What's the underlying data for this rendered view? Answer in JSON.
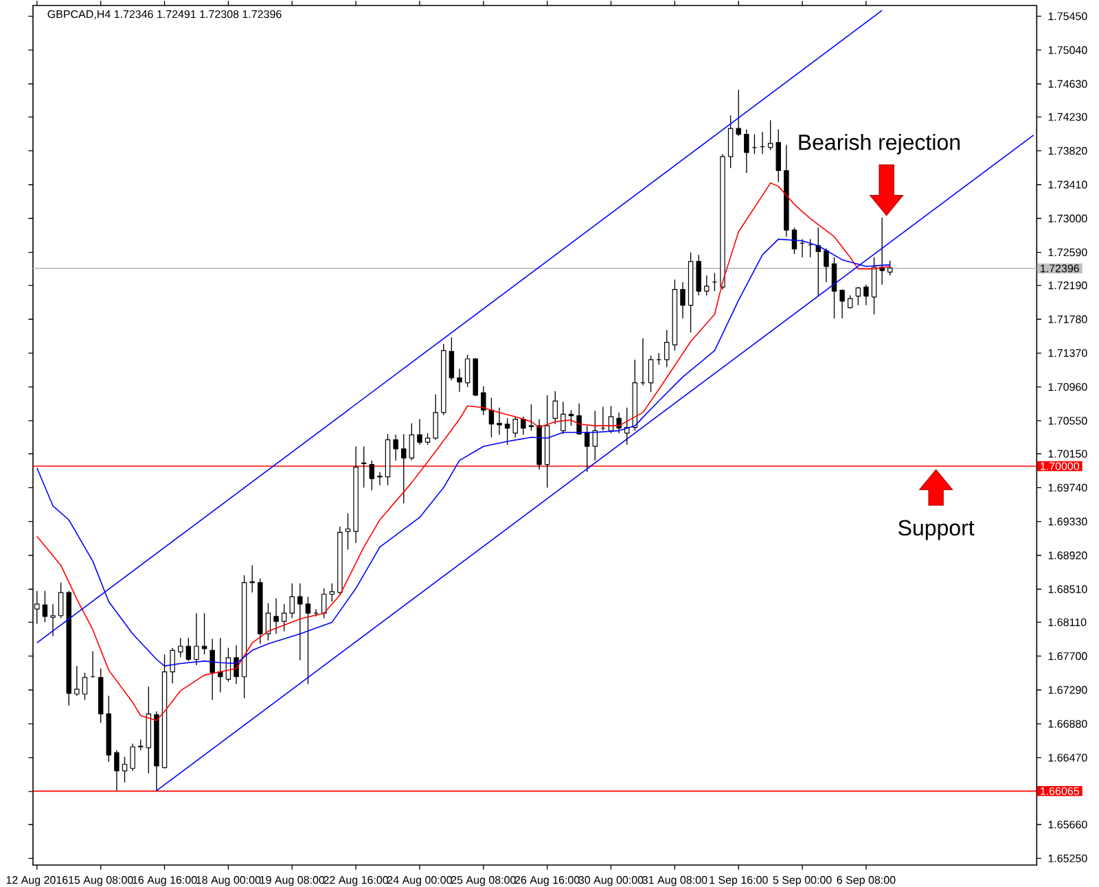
{
  "chart_data": {
    "type": "candlestick",
    "title": "GBPCAD,H4  1.72346 1.72491 1.72308 1.72396",
    "categories": [
      "12 Aug 2016",
      null,
      null,
      null,
      null,
      null,
      null,
      null,
      "15 Aug 08:00",
      null,
      null,
      null,
      null,
      null,
      null,
      null,
      "16 Aug 16:00",
      null,
      null,
      null,
      null,
      null,
      null,
      null,
      "18 Aug 00:00",
      null,
      null,
      null,
      null,
      null,
      null,
      null,
      "19 Aug 08:00",
      null,
      null,
      null,
      null,
      null,
      null,
      null,
      "22 Aug 16:00",
      null,
      null,
      null,
      null,
      null,
      null,
      null,
      "24 Aug 00:00",
      null,
      null,
      null,
      null,
      null,
      null,
      null,
      "25 Aug 08:00",
      null,
      null,
      null,
      null,
      null,
      null,
      null,
      "26 Aug 16:00",
      null,
      null,
      null,
      null,
      null,
      null,
      null,
      "30 Aug 00:00",
      null,
      null,
      null,
      null,
      null,
      null,
      null,
      "31 Aug 08:00",
      null,
      null,
      null,
      null,
      null,
      null,
      null,
      "1 Sep 16:00",
      null,
      null,
      null,
      null,
      null,
      null,
      null,
      "5 Sep 00:00",
      null,
      null,
      null,
      null,
      null,
      null,
      null,
      "6 Sep 08:00",
      null,
      null,
      null,
      null,
      null,
      null,
      null,
      null,
      null,
      null,
      null,
      null,
      null,
      null,
      null,
      null,
      null,
      null,
      null,
      null,
      null
    ],
    "ohlc": [
      [
        1.6827,
        1.6849,
        1.6809,
        1.6833
      ],
      [
        1.6832,
        1.6849,
        1.6811,
        1.6818
      ],
      [
        1.6817,
        1.6833,
        1.6794,
        1.6819
      ],
      [
        1.6819,
        1.6859,
        1.6816,
        1.6847
      ],
      [
        1.6847,
        1.6849,
        1.671,
        1.6725
      ],
      [
        1.6724,
        1.6758,
        1.6722,
        1.673
      ],
      [
        1.6724,
        1.675,
        1.6717,
        1.6744
      ],
      [
        1.6745,
        1.6776,
        1.6744,
        1.6745
      ],
      [
        1.6744,
        1.6755,
        1.6689,
        1.67
      ],
      [
        1.67,
        1.6722,
        1.6642,
        1.665
      ],
      [
        1.6653,
        1.6656,
        1.6607,
        1.6631
      ],
      [
        1.6631,
        1.6648,
        1.6617,
        1.6639
      ],
      [
        1.6634,
        1.6664,
        1.6631,
        1.666
      ],
      [
        1.666,
        1.6669,
        1.6656,
        1.6661
      ],
      [
        1.6659,
        1.6733,
        1.6628,
        1.67
      ],
      [
        1.6699,
        1.6703,
        1.6607,
        1.6637
      ],
      [
        1.6635,
        1.6772,
        1.6634,
        1.6751
      ],
      [
        1.6751,
        1.678,
        1.6737,
        1.6777
      ],
      [
        1.6775,
        1.6792,
        1.6769,
        1.6782
      ],
      [
        1.6782,
        1.6792,
        1.6764,
        1.6766
      ],
      [
        1.6766,
        1.6822,
        1.6759,
        1.6782
      ],
      [
        1.6782,
        1.6822,
        1.6772,
        1.6779
      ],
      [
        1.6777,
        1.6791,
        1.6717,
        1.675
      ],
      [
        1.6751,
        1.6792,
        1.6726,
        1.6745
      ],
      [
        1.6742,
        1.678,
        1.6739,
        1.6768
      ],
      [
        1.6768,
        1.6783,
        1.6736,
        1.6745
      ],
      [
        1.6745,
        1.6868,
        1.6719,
        1.6859
      ],
      [
        1.686,
        1.688,
        1.6847,
        1.6859
      ],
      [
        1.6859,
        1.6864,
        1.6785,
        1.6797
      ],
      [
        1.6797,
        1.6834,
        1.6789,
        1.6822
      ],
      [
        1.6818,
        1.684,
        1.6797,
        1.6812
      ],
      [
        1.6812,
        1.6833,
        1.68,
        1.6822
      ],
      [
        1.6822,
        1.6858,
        1.6816,
        1.6842
      ],
      [
        1.6842,
        1.6858,
        1.6765,
        1.6833
      ],
      [
        1.6833,
        1.6842,
        1.6736,
        1.6822
      ],
      [
        1.6822,
        1.6827,
        1.6818,
        1.6822
      ],
      [
        1.6822,
        1.6852,
        1.6816,
        1.6845
      ],
      [
        1.6845,
        1.6858,
        1.6836,
        1.6848
      ],
      [
        1.6847,
        1.6927,
        1.6845,
        1.692
      ],
      [
        1.6921,
        1.6943,
        1.6899,
        1.6924
      ],
      [
        1.6921,
        1.7024,
        1.6907,
        1.6999
      ],
      [
        1.7003,
        1.7024,
        1.6974,
        1.7004
      ],
      [
        1.7002,
        1.7007,
        1.6971,
        1.6985
      ],
      [
        1.6987,
        1.6993,
        1.6977,
        1.6988
      ],
      [
        1.6987,
        1.7039,
        1.6977,
        1.7032
      ],
      [
        1.7032,
        1.7038,
        1.7007,
        1.7021
      ],
      [
        1.7021,
        1.7039,
        1.6955,
        1.701
      ],
      [
        1.701,
        1.7052,
        1.7007,
        1.7038
      ],
      [
        1.7038,
        1.7057,
        1.7026,
        1.7029
      ],
      [
        1.7029,
        1.704,
        1.7026,
        1.7034
      ],
      [
        1.7034,
        1.7087,
        1.7032,
        1.7065
      ],
      [
        1.7065,
        1.7148,
        1.7062,
        1.714
      ],
      [
        1.7139,
        1.7156,
        1.7104,
        1.7107
      ],
      [
        1.7107,
        1.7118,
        1.709,
        1.7102
      ],
      [
        1.7101,
        1.7135,
        1.7096,
        1.713
      ],
      [
        1.713,
        1.7131,
        1.7085,
        1.7086
      ],
      [
        1.7089,
        1.7097,
        1.7062,
        1.7068
      ],
      [
        1.7068,
        1.7083,
        1.7035,
        1.7051
      ],
      [
        1.7052,
        1.7071,
        1.7038,
        1.705
      ],
      [
        1.7051,
        1.7058,
        1.7026,
        1.7046
      ],
      [
        1.704,
        1.706,
        1.7035,
        1.7057
      ],
      [
        1.7057,
        1.706,
        1.7038,
        1.7046
      ],
      [
        1.7049,
        1.7075,
        1.7043,
        1.7048
      ],
      [
        1.7049,
        1.7057,
        1.6996,
        1.7002
      ],
      [
        1.7002,
        1.7086,
        1.6974,
        1.7049
      ],
      [
        1.7058,
        1.7091,
        1.7051,
        1.7079
      ],
      [
        1.7043,
        1.7078,
        1.7039,
        1.7063
      ],
      [
        1.7063,
        1.7068,
        1.7049,
        1.7061
      ],
      [
        1.7061,
        1.7076,
        1.7038,
        1.7039
      ],
      [
        1.7041,
        1.7049,
        1.6993,
        1.7024
      ],
      [
        1.7024,
        1.7067,
        1.7007,
        1.7043
      ],
      [
        1.7046,
        1.7072,
        1.7043,
        1.7046
      ],
      [
        1.7043,
        1.7073,
        1.704,
        1.706
      ],
      [
        1.7058,
        1.7065,
        1.704,
        1.7046
      ],
      [
        1.704,
        1.7071,
        1.7026,
        1.7047
      ],
      [
        1.7047,
        1.7129,
        1.7043,
        1.7101
      ],
      [
        1.7101,
        1.7155,
        1.7098,
        1.7101
      ],
      [
        1.7101,
        1.7134,
        1.709,
        1.7129
      ],
      [
        1.7129,
        1.7137,
        1.7123,
        1.7129
      ],
      [
        1.7129,
        1.7165,
        1.712,
        1.715
      ],
      [
        1.7147,
        1.7226,
        1.714,
        1.7214
      ],
      [
        1.7214,
        1.7223,
        1.7179,
        1.7195
      ],
      [
        1.7195,
        1.7259,
        1.7162,
        1.7248
      ],
      [
        1.7248,
        1.7256,
        1.7207,
        1.7212
      ],
      [
        1.7212,
        1.7231,
        1.7207,
        1.7218
      ],
      [
        1.7223,
        1.7234,
        1.7212,
        1.7223
      ],
      [
        1.7217,
        1.7378,
        1.7214,
        1.7375
      ],
      [
        1.7375,
        1.7425,
        1.7361,
        1.7409
      ],
      [
        1.7409,
        1.7456,
        1.74,
        1.7402
      ],
      [
        1.7402,
        1.7408,
        1.7355,
        1.738
      ],
      [
        1.7386,
        1.7402,
        1.7378,
        1.7386
      ],
      [
        1.7387,
        1.7405,
        1.7378,
        1.7387
      ],
      [
        1.7386,
        1.7419,
        1.7383,
        1.7391
      ],
      [
        1.7392,
        1.7408,
        1.7344,
        1.7358
      ],
      [
        1.7358,
        1.7389,
        1.7278,
        1.7286
      ],
      [
        1.7286,
        1.7289,
        1.7257,
        1.7263
      ],
      [
        1.727,
        1.7275,
        1.7253,
        1.727
      ],
      [
        1.7268,
        1.7275,
        1.7253,
        1.7268
      ],
      [
        1.7267,
        1.7289,
        1.7206,
        1.726
      ],
      [
        1.7261,
        1.7264,
        1.7223,
        1.7242
      ],
      [
        1.7245,
        1.7253,
        1.7179,
        1.7212
      ],
      [
        1.7213,
        1.7214,
        1.7179,
        1.72
      ],
      [
        1.7192,
        1.7207,
        1.7191,
        1.7203
      ],
      [
        1.7206,
        1.7217,
        1.7195,
        1.7216
      ],
      [
        1.7217,
        1.722,
        1.7195,
        1.7206
      ],
      [
        1.7205,
        1.7253,
        1.7184,
        1.7241
      ],
      [
        1.7241,
        1.7301,
        1.722,
        1.7237
      ],
      [
        1.7235,
        1.7249,
        1.7231,
        1.724
      ],
      null,
      null,
      null,
      null,
      null,
      null,
      null,
      null,
      null,
      null,
      null,
      null,
      null,
      null,
      null,
      null,
      null,
      null
    ],
    "series": [
      {
        "type": "line",
        "color": "#ff0000",
        "values": [
          1.6915,
          null,
          null,
          1.688,
          null,
          1.6839,
          null,
          1.6802,
          null,
          1.6753,
          null,
          null,
          1.6714,
          1.6698,
          null,
          1.6692,
          1.6703,
          null,
          1.6728,
          null,
          null,
          1.6747,
          null,
          1.6751,
          null,
          1.6755,
          null,
          1.6786,
          null,
          1.68,
          null,
          null,
          null,
          1.6815,
          null,
          null,
          1.6822,
          null,
          1.6844,
          null,
          null,
          1.6902,
          null,
          1.6935,
          null,
          null,
          null,
          1.698,
          null,
          null,
          1.7018,
          null,
          null,
          1.7057,
          1.7073,
          null,
          1.7071,
          null,
          1.7065,
          null,
          1.706,
          null,
          1.7054,
          1.7047,
          null,
          1.7054,
          null,
          1.7056,
          1.7051,
          null,
          1.7049,
          null,
          null,
          1.7049,
          null,
          null,
          1.7065,
          null,
          1.7093,
          null,
          null,
          null,
          1.7151,
          null,
          null,
          1.7184,
          1.7223,
          null,
          1.7284,
          null,
          null,
          1.7328,
          1.7343,
          1.7339,
          null,
          1.7317,
          null,
          1.73,
          null,
          null,
          1.7278,
          null,
          1.7253,
          1.7239,
          null,
          1.7239,
          null,
          1.7242,
          null,
          null,
          null,
          null,
          null,
          null,
          null,
          null,
          null,
          null,
          null,
          null,
          null,
          null,
          null,
          null,
          null,
          null
        ]
      },
      {
        "type": "line",
        "color": "#0000ff",
        "values": [
          1.6998,
          null,
          1.6952,
          null,
          1.6935,
          null,
          null,
          1.6885,
          null,
          1.6836,
          null,
          null,
          1.6797,
          null,
          null,
          1.6766,
          1.6758,
          null,
          1.6761,
          null,
          null,
          1.6764,
          null,
          1.6762,
          null,
          1.6761,
          null,
          1.6777,
          null,
          1.6785,
          null,
          null,
          null,
          1.6797,
          null,
          null,
          null,
          1.6811,
          null,
          null,
          1.6852,
          null,
          null,
          1.6902,
          null,
          null,
          null,
          null,
          1.6938,
          null,
          null,
          1.6974,
          null,
          1.7007,
          null,
          null,
          1.7024,
          null,
          null,
          1.703,
          null,
          null,
          1.7035,
          null,
          1.7034,
          null,
          1.7041,
          null,
          1.7041,
          null,
          1.7041,
          null,
          null,
          1.7043,
          null,
          1.7049,
          null,
          null,
          1.7079,
          null,
          null,
          1.7108,
          null,
          null,
          null,
          1.714,
          null,
          null,
          1.7201,
          null,
          null,
          1.7256,
          null,
          1.7275,
          null,
          null,
          1.7273,
          null,
          1.7267,
          null,
          null,
          1.725,
          null,
          null,
          1.7242,
          null,
          null,
          1.7244,
          null,
          null,
          null,
          null,
          null,
          null,
          null,
          null,
          null,
          null,
          null,
          null,
          null,
          null,
          null,
          null,
          null,
          null
        ]
      },
      {
        "type": "line",
        "color": "#0000ff",
        "values": [
          1.6786,
          null,
          null,
          null,
          null,
          null,
          null,
          null,
          null,
          null,
          null,
          null,
          null,
          null,
          null,
          null,
          null,
          null,
          null,
          null,
          null,
          null,
          null,
          null,
          null,
          null,
          null,
          null,
          null,
          null,
          null,
          null,
          null,
          null,
          null,
          null,
          null,
          null,
          null,
          null,
          null,
          null,
          null,
          null,
          null,
          null,
          null,
          null,
          null,
          null,
          null,
          null,
          null,
          null,
          null,
          null,
          null,
          null,
          null,
          null,
          null,
          null,
          null,
          null,
          null,
          null,
          null,
          null,
          null,
          null,
          null,
          null,
          null,
          null,
          null,
          null,
          null,
          null,
          null,
          null,
          null,
          null,
          null,
          null,
          null,
          null,
          null,
          null,
          null,
          null,
          null,
          null,
          null,
          null,
          null,
          null,
          null,
          null,
          null,
          null,
          null,
          null,
          null,
          null,
          null,
          null,
          1.7552,
          null,
          null,
          null,
          null,
          null,
          null,
          null,
          null,
          null,
          null,
          null,
          null,
          null,
          null,
          null,
          null,
          null,
          null,
          null
        ]
      },
      {
        "type": "line",
        "color": "#0000ff",
        "values": [
          null,
          null,
          null,
          null,
          null,
          null,
          null,
          null,
          null,
          null,
          null,
          null,
          null,
          null,
          null,
          1.6607,
          null,
          null,
          null,
          null,
          null,
          null,
          null,
          null,
          null,
          null,
          null,
          null,
          null,
          null,
          null,
          null,
          null,
          null,
          null,
          null,
          null,
          null,
          null,
          null,
          null,
          null,
          null,
          null,
          null,
          null,
          null,
          null,
          null,
          null,
          null,
          null,
          null,
          null,
          null,
          null,
          null,
          null,
          null,
          null,
          null,
          null,
          null,
          null,
          null,
          null,
          null,
          null,
          null,
          null,
          null,
          null,
          null,
          null,
          null,
          null,
          null,
          null,
          null,
          null,
          null,
          null,
          null,
          null,
          null,
          null,
          null,
          null,
          null,
          null,
          null,
          null,
          null,
          null,
          null,
          null,
          null,
          null,
          null,
          null,
          null,
          null,
          null,
          null,
          null,
          null,
          null,
          null,
          null,
          null,
          null,
          null,
          null,
          null,
          null,
          null,
          null,
          null,
          null,
          null,
          null,
          null,
          null,
          null,
          null,
          1.7401
        ]
      }
    ],
    "ylim": [
      1.6517,
      1.7558
    ],
    "yticks": [
      {
        "value": 1.7545,
        "label": "1.75450"
      },
      {
        "value": 1.7504,
        "label": "1.75040"
      },
      {
        "value": 1.7463,
        "label": "1.74630"
      },
      {
        "value": 1.7423,
        "label": "1.74230"
      },
      {
        "value": 1.7382,
        "label": "1.73820"
      },
      {
        "value": 1.7341,
        "label": "1.73410"
      },
      {
        "value": 1.73,
        "label": "1.73000"
      },
      {
        "value": 1.7259,
        "label": "1.72590"
      },
      {
        "value": 1.7219,
        "label": "1.72190"
      },
      {
        "value": 1.7178,
        "label": "1.71780"
      },
      {
        "value": 1.7137,
        "label": "1.71370"
      },
      {
        "value": 1.7096,
        "label": "1.70960"
      },
      {
        "value": 1.7055,
        "label": "1.70550"
      },
      {
        "value": 1.7015,
        "label": "1.70150"
      },
      {
        "value": 1.6974,
        "label": "1.69740"
      },
      {
        "value": 1.6933,
        "label": "1.69330"
      },
      {
        "value": 1.6892,
        "label": "1.68920"
      },
      {
        "value": 1.6851,
        "label": "1.68510"
      },
      {
        "value": 1.6811,
        "label": "1.68110"
      },
      {
        "value": 1.677,
        "label": "1.67700"
      },
      {
        "value": 1.6729,
        "label": "1.67290"
      },
      {
        "value": 1.6688,
        "label": "1.66880"
      },
      {
        "value": 1.6647,
        "label": "1.66470"
      },
      {
        "value": 1.6606,
        "label": null
      },
      {
        "value": 1.6566,
        "label": "1.65660"
      },
      {
        "value": 1.6525,
        "label": "1.65250"
      }
    ],
    "ref_lines": [
      {
        "axis": "y",
        "value": 1.72396,
        "label": "1.72396",
        "color": "#c0c0c0"
      },
      {
        "axis": "y",
        "value": 1.7,
        "label": "1.70000",
        "color": "#ff0000"
      },
      {
        "axis": "y",
        "value": 1.66065,
        "label": "1.66065",
        "color": "#ff0000"
      }
    ],
    "annotations": [
      "Bearish rejection",
      "Support"
    ]
  }
}
